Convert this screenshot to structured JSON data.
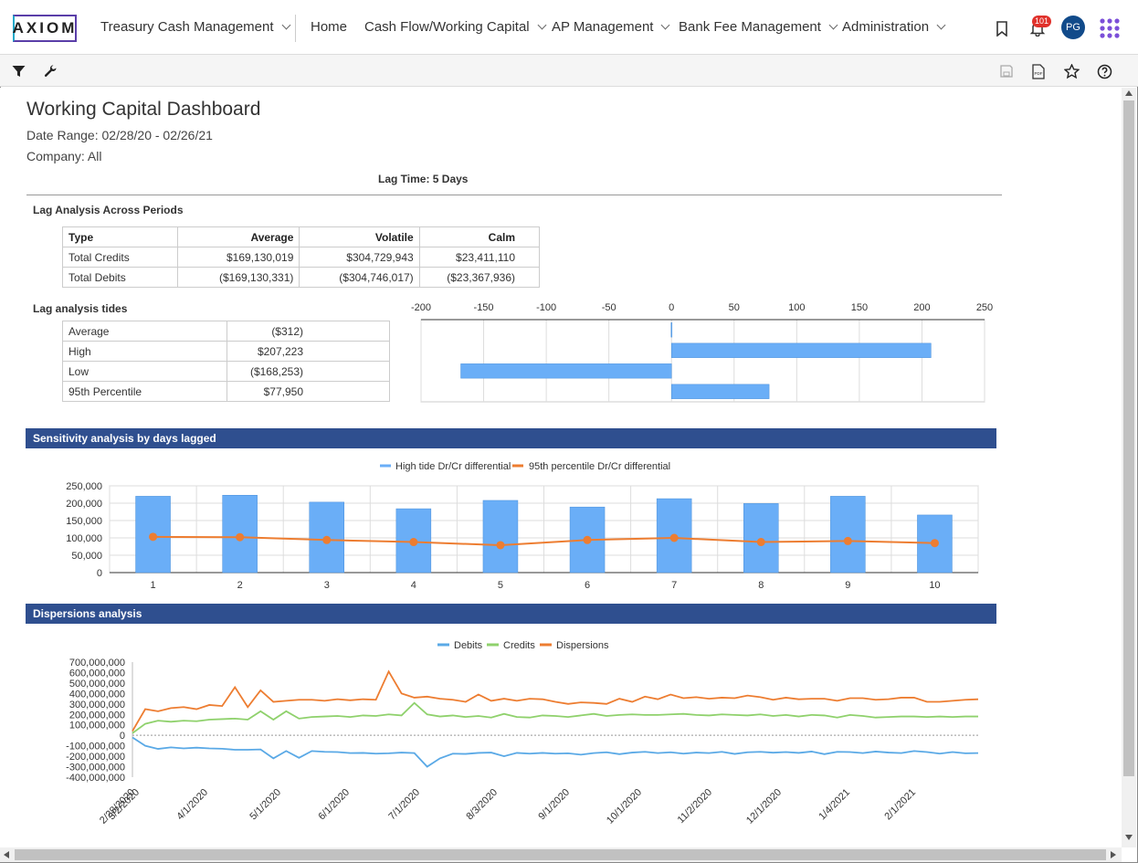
{
  "nav": {
    "logo": "AXIOM",
    "app_name": "Treasury Cash Management",
    "items": [
      {
        "label": "Home",
        "has_menu": false
      },
      {
        "label": "Cash Flow/Working Capital",
        "has_menu": true
      },
      {
        "label": "AP Management",
        "has_menu": true
      },
      {
        "label": "Bank Fee Management",
        "has_menu": true
      },
      {
        "label": "Administration",
        "has_menu": true
      }
    ],
    "notification_count": "101",
    "avatar_initials": "PG"
  },
  "toolbar": {
    "left_icons": [
      "filter-icon",
      "wrench-icon"
    ],
    "right_icons": [
      "save-icon",
      "pdf-icon",
      "star-icon",
      "help-icon"
    ]
  },
  "page": {
    "title": "Working Capital Dashboard",
    "date_range": "Date Range: 02/28/20 - 02/26/21",
    "company": "Company: All",
    "lag_time": "Lag Time: 5 Days"
  },
  "lag_periods": {
    "title": "Lag Analysis Across Periods",
    "headers": [
      "Type",
      "Average",
      "Volatile",
      "Calm"
    ],
    "rows": [
      [
        "Total Credits",
        "$169,130,019",
        "$304,729,943",
        "$23,411,110"
      ],
      [
        "Total Debits",
        "($169,130,331)",
        "($304,746,017)",
        "($23,367,936)"
      ]
    ]
  },
  "lag_tides": {
    "title": "Lag analysis tides",
    "rows": [
      [
        "Average",
        "($312)"
      ],
      [
        "High",
        "$207,223"
      ],
      [
        "Low",
        "($168,253)"
      ],
      [
        "95th Percentile",
        "$77,950"
      ]
    ]
  },
  "tides_chart": {
    "type": "bar",
    "orientation": "horizontal",
    "axis_ticks": [
      "-200",
      "-150",
      "-100",
      "-50",
      "0",
      "50",
      "100",
      "150",
      "200",
      "250"
    ],
    "xlim": [
      -200,
      250
    ],
    "values": [
      -0.312,
      207.223,
      -168.253,
      77.95
    ],
    "color": "#6aaef7"
  },
  "sensitivity": {
    "title": "Sensitivity analysis by days lagged",
    "legend": [
      "High tide Dr/Cr differential",
      "95th percentile Dr/Cr differential"
    ],
    "y_ticks": [
      "250,000",
      "200,000",
      "150,000",
      "100,000",
      "50,000",
      "0"
    ]
  },
  "dispersions": {
    "title": "Dispersions analysis",
    "legend": [
      "Debits",
      "Credits",
      "Dispersions"
    ],
    "y_ticks": [
      "700,000,000",
      "600,000,000",
      "500,000,000",
      "400,000,000",
      "300,000,000",
      "200,000,000",
      "100,000,000",
      "0",
      "-100,000,000",
      "-200,000,000",
      "-300,000,000",
      "-400,000,000"
    ],
    "x_labels": [
      "2/28/2020",
      "3/2/2020",
      "4/1/2020",
      "5/1/2020",
      "6/1/2020",
      "7/1/2020",
      "8/3/2020",
      "9/1/2020",
      "10/1/2020",
      "11/2/2020",
      "12/1/2020",
      "1/4/2021",
      "2/1/2021"
    ]
  },
  "chart_data": [
    {
      "type": "bar",
      "title": "Sensitivity analysis by days lagged",
      "categories": [
        "1",
        "2",
        "3",
        "4",
        "5",
        "6",
        "7",
        "8",
        "9",
        "10"
      ],
      "series": [
        {
          "name": "High tide Dr/Cr differential",
          "type": "bar",
          "color": "#6aaef7",
          "values": [
            220000,
            223000,
            203000,
            184000,
            208000,
            189000,
            213000,
            199000,
            220000,
            166000
          ]
        },
        {
          "name": "95th percentile Dr/Cr differential",
          "type": "line",
          "color": "#ed7d31",
          "values": [
            103000,
            102000,
            94000,
            88000,
            79000,
            94000,
            100000,
            88000,
            91000,
            85000
          ]
        }
      ],
      "ylim": [
        0,
        250000
      ],
      "grid": true,
      "legend_position": "top"
    },
    {
      "type": "line",
      "title": "Dispersions analysis",
      "ylim": [
        -400000000,
        700000000
      ],
      "grid": false,
      "legend_position": "top",
      "series": [
        {
          "name": "Debits",
          "color": "#5aa9e6",
          "values": [
            -20000000,
            -100000000,
            -130000000,
            -115000000,
            -125000000,
            -118000000,
            -125000000,
            -128000000,
            -138000000,
            -138000000,
            -135000000,
            -220000000,
            -150000000,
            -215000000,
            -150000000,
            -158000000,
            -160000000,
            -170000000,
            -168000000,
            -175000000,
            -172000000,
            -165000000,
            -170000000,
            -300000000,
            -220000000,
            -175000000,
            -178000000,
            -168000000,
            -165000000,
            -200000000,
            -168000000,
            -175000000,
            -168000000,
            -175000000,
            -172000000,
            -185000000,
            -170000000,
            -162000000,
            -180000000,
            -165000000,
            -158000000,
            -170000000,
            -162000000,
            -175000000,
            -165000000,
            -170000000,
            -158000000,
            -178000000,
            -162000000,
            -158000000,
            -166000000,
            -160000000,
            -168000000,
            -155000000,
            -180000000,
            -158000000,
            -160000000,
            -170000000,
            -155000000,
            -165000000,
            -170000000,
            -150000000,
            -160000000,
            -175000000,
            -160000000,
            -172000000,
            -170000000
          ]
        },
        {
          "name": "Credits",
          "color": "#8fd16c",
          "values": [
            20000000,
            110000000,
            140000000,
            130000000,
            140000000,
            135000000,
            150000000,
            155000000,
            160000000,
            150000000,
            230000000,
            150000000,
            230000000,
            160000000,
            175000000,
            180000000,
            185000000,
            175000000,
            190000000,
            185000000,
            200000000,
            190000000,
            310000000,
            200000000,
            180000000,
            190000000,
            175000000,
            185000000,
            170000000,
            205000000,
            175000000,
            170000000,
            190000000,
            185000000,
            175000000,
            190000000,
            205000000,
            185000000,
            195000000,
            200000000,
            195000000,
            195000000,
            200000000,
            205000000,
            195000000,
            190000000,
            200000000,
            195000000,
            190000000,
            200000000,
            185000000,
            195000000,
            180000000,
            195000000,
            190000000,
            170000000,
            195000000,
            185000000,
            170000000,
            175000000,
            180000000,
            180000000,
            175000000,
            180000000,
            175000000,
            180000000,
            180000000
          ]
        },
        {
          "name": "Dispersions",
          "color": "#ed7d31",
          "values": [
            40000000,
            250000000,
            230000000,
            260000000,
            270000000,
            250000000,
            290000000,
            280000000,
            460000000,
            270000000,
            430000000,
            320000000,
            330000000,
            340000000,
            340000000,
            330000000,
            345000000,
            335000000,
            345000000,
            340000000,
            610000000,
            400000000,
            360000000,
            370000000,
            350000000,
            340000000,
            320000000,
            390000000,
            330000000,
            350000000,
            330000000,
            350000000,
            345000000,
            320000000,
            300000000,
            315000000,
            310000000,
            300000000,
            350000000,
            320000000,
            370000000,
            345000000,
            390000000,
            355000000,
            365000000,
            350000000,
            360000000,
            355000000,
            380000000,
            365000000,
            340000000,
            360000000,
            345000000,
            350000000,
            350000000,
            330000000,
            355000000,
            355000000,
            340000000,
            345000000,
            360000000,
            360000000,
            320000000,
            320000000,
            330000000,
            340000000,
            345000000
          ]
        }
      ]
    }
  ]
}
